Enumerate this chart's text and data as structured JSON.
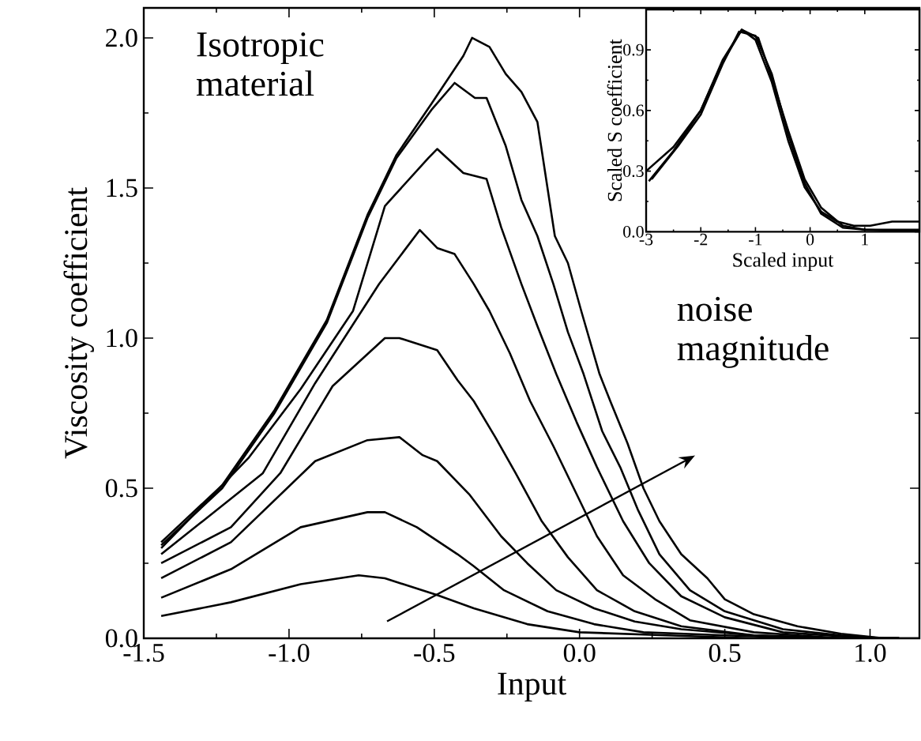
{
  "chart_data": [
    {
      "type": "line",
      "xlabel": "Input",
      "ylabel": "Viscosity coefficient",
      "annotations": [
        "Isotropic material",
        "noise magnitude"
      ],
      "xlim": [
        -1.5,
        1.17
      ],
      "ylim": [
        0,
        2.1
      ],
      "xticks": [
        {
          "value": -1.5,
          "label": "-1.5"
        },
        {
          "value": -1,
          "label": "-1.0"
        },
        {
          "value": -0.5,
          "label": "-0.5"
        },
        {
          "value": 0,
          "label": "0.0"
        },
        {
          "value": 0.5,
          "label": "0.5"
        },
        {
          "value": 1,
          "label": "1.0"
        }
      ],
      "yticks": [
        {
          "value": 0,
          "label": "0.0"
        },
        {
          "value": 0.5,
          "label": "0.5"
        },
        {
          "value": 1,
          "label": "1.0"
        },
        {
          "value": 1.5,
          "label": "1.5"
        },
        {
          "value": 2,
          "label": "2.0"
        }
      ],
      "line_style": "solid",
      "series": [
        {
          "color": "#000000",
          "x": [
            -1.44,
            -1.2,
            -0.96,
            -0.76,
            -0.67,
            -0.49,
            -0.364,
            -0.18,
            0,
            0.3,
            0.6,
            1.1
          ],
          "values": [
            0.074,
            0.12,
            0.18,
            0.21,
            0.2,
            0.144,
            0.1,
            0.047,
            0.02,
            0.01,
            0,
            0
          ]
        },
        {
          "color": "#000000",
          "x": [
            -1.44,
            -1.2,
            -0.96,
            -0.73,
            -0.67,
            -0.56,
            -0.42,
            -0.364,
            -0.26,
            -0.11,
            0.05,
            0.22,
            0.5,
            0.8,
            1.1
          ],
          "values": [
            0.135,
            0.23,
            0.37,
            0.42,
            0.42,
            0.37,
            0.28,
            0.24,
            0.16,
            0.09,
            0.047,
            0.02,
            0.01,
            0,
            0
          ]
        },
        {
          "color": "#000000",
          "x": [
            -1.44,
            -1.2,
            -0.91,
            -0.73,
            -0.62,
            -0.54,
            -0.49,
            -0.38,
            -0.27,
            -0.18,
            -0.08,
            0.05,
            0.19,
            0.35,
            0.6,
            0.9,
            1.1
          ],
          "values": [
            0.2,
            0.32,
            0.59,
            0.66,
            0.67,
            0.61,
            0.59,
            0.48,
            0.34,
            0.25,
            0.16,
            0.1,
            0.056,
            0.03,
            0.01,
            0,
            0
          ]
        },
        {
          "color": "#000000",
          "x": [
            -1.44,
            -1.2,
            -1.03,
            -0.85,
            -0.67,
            -0.62,
            -0.49,
            -0.42,
            -0.364,
            -0.29,
            -0.22,
            -0.13,
            -0.04,
            0.06,
            0.19,
            0.35,
            0.6,
            0.9,
            1.1
          ],
          "values": [
            0.25,
            0.37,
            0.55,
            0.84,
            1.0,
            1.0,
            0.96,
            0.86,
            0.79,
            0.67,
            0.55,
            0.39,
            0.27,
            0.16,
            0.09,
            0.04,
            0.01,
            0,
            0
          ]
        },
        {
          "color": "#000000",
          "x": [
            -1.44,
            -1.09,
            -0.91,
            -0.69,
            -0.55,
            -0.49,
            -0.43,
            -0.364,
            -0.31,
            -0.24,
            -0.17,
            -0.09,
            -0.02,
            0.06,
            0.15,
            0.26,
            0.38,
            0.6,
            0.9,
            1.1
          ],
          "values": [
            0.28,
            0.55,
            0.85,
            1.18,
            1.36,
            1.3,
            1.28,
            1.18,
            1.09,
            0.95,
            0.79,
            0.64,
            0.5,
            0.34,
            0.21,
            0.13,
            0.06,
            0.02,
            0,
            0
          ]
        },
        {
          "color": "#000000",
          "x": [
            -1.44,
            -1.14,
            -0.96,
            -0.78,
            -0.67,
            -0.52,
            -0.49,
            -0.4,
            -0.32,
            -0.27,
            -0.2,
            -0.145,
            -0.08,
            -0.01,
            0.06,
            0.15,
            0.24,
            0.35,
            0.5,
            0.7,
            1.0,
            1.1
          ],
          "values": [
            0.3,
            0.6,
            0.83,
            1.09,
            1.44,
            1.6,
            1.63,
            1.55,
            1.53,
            1.37,
            1.18,
            1.04,
            0.88,
            0.72,
            0.57,
            0.39,
            0.25,
            0.14,
            0.07,
            0.02,
            0,
            0
          ]
        },
        {
          "color": "#000000",
          "x": [
            -1.44,
            -1.23,
            -1.05,
            -0.87,
            -0.73,
            -0.63,
            -0.51,
            -0.43,
            -0.36,
            -0.32,
            -0.254,
            -0.2,
            -0.145,
            -0.09,
            -0.04,
            0.014,
            0.078,
            0.14,
            0.2,
            0.275,
            0.38,
            0.5,
            0.7,
            0.9,
            1.05,
            1.1
          ],
          "values": [
            0.31,
            0.5,
            0.75,
            1.05,
            1.4,
            1.6,
            1.76,
            1.85,
            1.8,
            1.8,
            1.64,
            1.46,
            1.34,
            1.18,
            1.02,
            0.88,
            0.69,
            0.57,
            0.43,
            0.28,
            0.16,
            0.09,
            0.03,
            0.01,
            0,
            0
          ]
        },
        {
          "color": "#000000",
          "x": [
            -1.44,
            -1.23,
            -1.05,
            -0.87,
            -0.73,
            -0.63,
            -0.51,
            -0.4,
            -0.37,
            -0.31,
            -0.254,
            -0.2,
            -0.145,
            -0.085,
            -0.04,
            0.006,
            0.069,
            0.11,
            0.165,
            0.22,
            0.275,
            0.35,
            0.44,
            0.5,
            0.6,
            0.75,
            0.9,
            1.05,
            1.17
          ],
          "values": [
            0.32,
            0.51,
            0.76,
            1.06,
            1.41,
            1.61,
            1.78,
            1.94,
            2.0,
            1.97,
            1.88,
            1.82,
            1.72,
            1.34,
            1.25,
            1.09,
            0.88,
            0.78,
            0.65,
            0.5,
            0.39,
            0.28,
            0.2,
            0.13,
            0.08,
            0.04,
            0.015,
            0,
            0
          ]
        }
      ]
    },
    {
      "type": "line",
      "xlabel": "Scaled input",
      "ylabel": "Scaled S coefficient",
      "xlim": [
        -3,
        2
      ],
      "ylim": [
        0,
        1.1
      ],
      "xticks": [
        -3,
        -2,
        -1,
        0,
        1
      ],
      "yticks": [
        {
          "value": 0,
          "label": "0.0"
        },
        {
          "value": 0.3,
          "label": "0.3"
        },
        {
          "value": 0.6,
          "label": "0.6"
        },
        {
          "value": 0.9,
          "label": "0.9"
        }
      ],
      "line_style": "solid",
      "series": [
        {
          "color": "#000000",
          "x": [
            -3,
            -2.5,
            -2,
            -1.6,
            -1.25,
            -1.0,
            -0.7,
            -0.4,
            -0.1,
            0.2,
            0.5,
            0.8,
            1.1,
            1.5,
            2.0
          ],
          "values": [
            0.3,
            0.42,
            0.6,
            0.84,
            1.0,
            0.95,
            0.74,
            0.45,
            0.22,
            0.1,
            0.05,
            0.03,
            0.03,
            0.05,
            0.05
          ]
        },
        {
          "color": "#000000",
          "x": [
            -2.95,
            -2.5,
            -2,
            -1.6,
            -1.25,
            -0.95,
            -0.7,
            -0.4,
            -0.1,
            0.2,
            0.6,
            1.0,
            2.0
          ],
          "values": [
            0.25,
            0.4,
            0.6,
            0.85,
            1.0,
            0.96,
            0.76,
            0.5,
            0.26,
            0.12,
            0.03,
            0.01,
            0
          ]
        },
        {
          "color": "#000000",
          "x": [
            -2.9,
            -2.4,
            -2,
            -1.6,
            -1.3,
            -1.0,
            -0.7,
            -0.4,
            -0.1,
            0.2,
            0.6,
            1.0,
            2.0
          ],
          "values": [
            0.26,
            0.43,
            0.58,
            0.83,
            0.99,
            0.97,
            0.78,
            0.48,
            0.24,
            0.09,
            0.02,
            0.01,
            0.01
          ]
        }
      ]
    }
  ]
}
